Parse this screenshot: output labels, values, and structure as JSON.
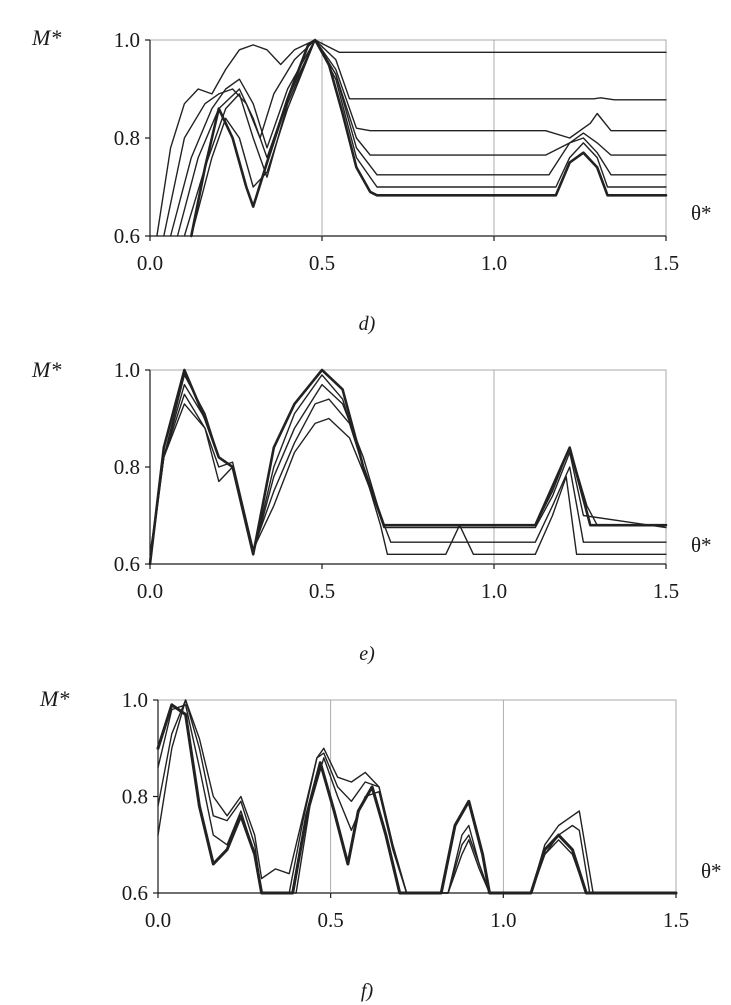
{
  "chart_data": [
    {
      "type": "line",
      "panel": "d",
      "caption": "d)",
      "ylabel": "M*",
      "xlabel": "θ*",
      "xlim": [
        0,
        1.5
      ],
      "ylim": [
        0.6,
        1.0
      ],
      "xticks": [
        "0.0",
        "0.5",
        "1.0",
        "1.5"
      ],
      "yticks": [
        "0.6",
        "0.8",
        "1.0"
      ],
      "vgrid": [
        0.5,
        1.0
      ],
      "series": [
        {
          "x": [
            0.02,
            0.06,
            0.1,
            0.14,
            0.18,
            0.22,
            0.26,
            0.3,
            0.34,
            0.38,
            0.42,
            0.48,
            0.55,
            0.7,
            1.0,
            1.5
          ],
          "y": [
            0.6,
            0.78,
            0.87,
            0.9,
            0.89,
            0.94,
            0.98,
            0.99,
            0.98,
            0.95,
            0.98,
            1.0,
            0.975,
            0.975,
            0.975,
            0.975
          ],
          "width": 1.4
        },
        {
          "x": [
            0.04,
            0.1,
            0.16,
            0.2,
            0.24,
            0.28,
            0.32,
            0.36,
            0.42,
            0.48,
            0.54,
            0.58,
            0.7,
            1.25,
            1.29,
            1.31,
            1.35,
            1.5
          ],
          "y": [
            0.6,
            0.8,
            0.87,
            0.89,
            0.9,
            0.87,
            0.8,
            0.89,
            0.96,
            1.0,
            0.96,
            0.88,
            0.88,
            0.88,
            0.88,
            0.882,
            0.878,
            0.878
          ],
          "width": 1.4
        },
        {
          "x": [
            0.06,
            0.12,
            0.18,
            0.22,
            0.26,
            0.3,
            0.34,
            0.4,
            0.48,
            0.54,
            0.6,
            0.64,
            1.15,
            1.22,
            1.28,
            1.3,
            1.34,
            1.5
          ],
          "y": [
            0.6,
            0.76,
            0.86,
            0.9,
            0.92,
            0.87,
            0.78,
            0.9,
            1.0,
            0.94,
            0.82,
            0.815,
            0.815,
            0.8,
            0.83,
            0.85,
            0.815,
            0.815
          ],
          "width": 1.4
        },
        {
          "x": [
            0.08,
            0.14,
            0.2,
            0.26,
            0.3,
            0.34,
            0.4,
            0.48,
            0.54,
            0.6,
            0.64,
            1.15,
            1.22,
            1.26,
            1.3,
            1.34,
            1.5
          ],
          "y": [
            0.6,
            0.76,
            0.86,
            0.9,
            0.84,
            0.76,
            0.88,
            1.0,
            0.93,
            0.8,
            0.765,
            0.765,
            0.79,
            0.81,
            0.79,
            0.765,
            0.765
          ],
          "width": 1.4
        },
        {
          "x": [
            0.1,
            0.16,
            0.22,
            0.26,
            0.3,
            0.34,
            0.4,
            0.48,
            0.54,
            0.6,
            0.66,
            1.16,
            1.22,
            1.26,
            1.3,
            1.34,
            1.5
          ],
          "y": [
            0.6,
            0.74,
            0.86,
            0.89,
            0.8,
            0.72,
            0.87,
            1.0,
            0.93,
            0.78,
            0.725,
            0.725,
            0.79,
            0.8,
            0.77,
            0.725,
            0.725
          ],
          "width": 1.4
        },
        {
          "x": [
            0.12,
            0.18,
            0.22,
            0.26,
            0.3,
            0.34,
            0.4,
            0.48,
            0.54,
            0.6,
            0.66,
            1.18,
            1.22,
            1.26,
            1.3,
            1.33,
            1.5
          ],
          "y": [
            0.6,
            0.76,
            0.84,
            0.8,
            0.7,
            0.73,
            0.86,
            1.0,
            0.92,
            0.76,
            0.7,
            0.7,
            0.76,
            0.79,
            0.76,
            0.7,
            0.7
          ],
          "width": 1.4
        },
        {
          "x": [
            0.12,
            0.16,
            0.2,
            0.24,
            0.28,
            0.3,
            0.34,
            0.4,
            0.46,
            0.48,
            0.52,
            0.56,
            0.6,
            0.64,
            0.66,
            1.18,
            1.22,
            1.26,
            1.3,
            1.33,
            1.5
          ],
          "y": [
            0.6,
            0.74,
            0.86,
            0.8,
            0.7,
            0.66,
            0.75,
            0.88,
            0.99,
            1.0,
            0.95,
            0.85,
            0.74,
            0.69,
            0.683,
            0.683,
            0.75,
            0.77,
            0.74,
            0.683,
            0.683
          ],
          "width": 2.6
        }
      ]
    },
    {
      "type": "line",
      "panel": "e",
      "caption": "e)",
      "ylabel": "M*",
      "xlabel": "θ*",
      "xlim": [
        0,
        1.5
      ],
      "ylim": [
        0.6,
        1.0
      ],
      "xticks": [
        "0.0",
        "0.5",
        "1.0",
        "1.5"
      ],
      "yticks": [
        "0.6",
        "0.8",
        "1.0"
      ],
      "vgrid": [
        1.0
      ],
      "series": [
        {
          "x": [
            0.0,
            0.04,
            0.1,
            0.16,
            0.2,
            0.24,
            0.3,
            0.36,
            0.42,
            0.48,
            0.52,
            0.58,
            0.62,
            0.68,
            1.12,
            1.17,
            1.22,
            1.27,
            1.3,
            1.5
          ],
          "y": [
            0.62,
            0.82,
            0.93,
            0.88,
            0.77,
            0.8,
            0.63,
            0.72,
            0.83,
            0.89,
            0.9,
            0.86,
            0.79,
            0.68,
            0.68,
            0.75,
            0.84,
            0.72,
            0.68,
            0.68
          ],
          "width": 1.4
        },
        {
          "x": [
            0.0,
            0.04,
            0.1,
            0.16,
            0.2,
            0.24,
            0.3,
            0.36,
            0.42,
            0.48,
            0.52,
            0.58,
            0.62,
            0.68,
            1.12,
            1.17,
            1.22,
            1.26,
            1.5
          ],
          "y": [
            0.61,
            0.82,
            0.95,
            0.88,
            0.8,
            0.81,
            0.63,
            0.75,
            0.85,
            0.93,
            0.94,
            0.89,
            0.8,
            0.675,
            0.675,
            0.74,
            0.83,
            0.7,
            0.675
          ],
          "width": 1.4
        },
        {
          "x": [
            0.0,
            0.04,
            0.1,
            0.16,
            0.2,
            0.24,
            0.3,
            0.36,
            0.42,
            0.5,
            0.56,
            0.62,
            0.67,
            0.7,
            1.12,
            1.17,
            1.22,
            1.26,
            1.5
          ],
          "y": [
            0.61,
            0.82,
            0.97,
            0.9,
            0.82,
            0.8,
            0.62,
            0.78,
            0.88,
            0.97,
            0.93,
            0.82,
            0.7,
            0.645,
            0.645,
            0.72,
            0.8,
            0.645,
            0.645
          ],
          "width": 1.4
        },
        {
          "x": [
            0.0,
            0.04,
            0.1,
            0.16,
            0.2,
            0.24,
            0.3,
            0.36,
            0.42,
            0.5,
            0.56,
            0.62,
            0.67,
            0.69,
            0.86,
            0.9,
            0.94,
            1.12,
            1.17,
            1.21,
            1.24,
            1.5
          ],
          "y": [
            0.6,
            0.82,
            0.99,
            0.91,
            0.82,
            0.8,
            0.62,
            0.8,
            0.91,
            0.99,
            0.94,
            0.8,
            0.68,
            0.62,
            0.62,
            0.68,
            0.62,
            0.62,
            0.7,
            0.78,
            0.62,
            0.62
          ],
          "width": 1.4
        },
        {
          "x": [
            0.0,
            0.04,
            0.1,
            0.16,
            0.2,
            0.24,
            0.3,
            0.36,
            0.42,
            0.5,
            0.56,
            0.62,
            0.68,
            1.12,
            1.17,
            1.22,
            1.28,
            1.5
          ],
          "y": [
            0.6,
            0.84,
            1.0,
            0.9,
            0.82,
            0.8,
            0.62,
            0.84,
            0.93,
            1.0,
            0.96,
            0.8,
            0.68,
            0.68,
            0.76,
            0.84,
            0.68,
            0.68
          ],
          "width": 2.6
        }
      ]
    },
    {
      "type": "line",
      "panel": "f",
      "caption": "f)",
      "ylabel": "M*",
      "xlabel": "θ*",
      "xlim": [
        0,
        1.5
      ],
      "ylim": [
        0.6,
        1.0
      ],
      "xticks": [
        "0.0",
        "0.5",
        "1.0",
        "1.5"
      ],
      "yticks": [
        "0.6",
        "0.8",
        "1.0"
      ],
      "vgrid": [
        0.5,
        1.0
      ],
      "series": [
        {
          "x": [
            0.0,
            0.04,
            0.08,
            0.12,
            0.16,
            0.2,
            0.24,
            0.28,
            0.3,
            0.34,
            0.38,
            0.42,
            0.46,
            0.48,
            0.52,
            0.56,
            0.6,
            0.64,
            0.68,
            0.72,
            0.84,
            0.88,
            0.9,
            0.93,
            0.96,
            1.08,
            1.12,
            1.16,
            1.2,
            1.22,
            1.26,
            1.5
          ],
          "y": [
            0.72,
            0.9,
            1.0,
            0.92,
            0.8,
            0.76,
            0.8,
            0.72,
            0.63,
            0.65,
            0.64,
            0.76,
            0.88,
            0.9,
            0.84,
            0.83,
            0.85,
            0.82,
            0.7,
            0.6,
            0.6,
            0.72,
            0.74,
            0.66,
            0.6,
            0.6,
            0.7,
            0.74,
            0.76,
            0.77,
            0.6,
            0.6
          ],
          "width": 1.4
        },
        {
          "x": [
            0.0,
            0.04,
            0.08,
            0.12,
            0.16,
            0.2,
            0.24,
            0.28,
            0.3,
            0.34,
            0.38,
            0.42,
            0.46,
            0.48,
            0.52,
            0.56,
            0.6,
            0.64,
            0.68,
            0.72,
            0.84,
            0.88,
            0.9,
            0.93,
            0.96,
            1.08,
            1.12,
            1.16,
            1.2,
            1.22,
            1.25,
            1.5
          ],
          "y": [
            0.78,
            0.93,
            1.0,
            0.9,
            0.76,
            0.75,
            0.79,
            0.7,
            0.6,
            0.6,
            0.6,
            0.75,
            0.88,
            0.89,
            0.82,
            0.79,
            0.83,
            0.82,
            0.7,
            0.6,
            0.6,
            0.68,
            0.71,
            0.65,
            0.6,
            0.6,
            0.68,
            0.72,
            0.74,
            0.73,
            0.6,
            0.6
          ],
          "width": 1.4
        },
        {
          "x": [
            0.0,
            0.04,
            0.08,
            0.12,
            0.16,
            0.2,
            0.24,
            0.28,
            0.3,
            0.4,
            0.44,
            0.48,
            0.52,
            0.56,
            0.6,
            0.64,
            0.68,
            0.72,
            0.84,
            0.88,
            0.9,
            0.93,
            0.96,
            1.08,
            1.12,
            1.16,
            1.2,
            1.24,
            1.5
          ],
          "y": [
            0.86,
            0.98,
            0.99,
            0.86,
            0.72,
            0.7,
            0.77,
            0.68,
            0.6,
            0.6,
            0.78,
            0.88,
            0.8,
            0.73,
            0.8,
            0.81,
            0.69,
            0.6,
            0.6,
            0.7,
            0.72,
            0.66,
            0.6,
            0.6,
            0.68,
            0.71,
            0.68,
            0.6,
            0.6
          ],
          "width": 1.4
        },
        {
          "x": [
            0.0,
            0.04,
            0.08,
            0.12,
            0.16,
            0.2,
            0.24,
            0.28,
            0.3,
            0.39,
            0.43,
            0.47,
            0.51,
            0.55,
            0.58,
            0.62,
            0.66,
            0.7,
            0.82,
            0.86,
            0.9,
            0.94,
            0.96,
            1.08,
            1.12,
            1.16,
            1.2,
            1.24,
            1.5
          ],
          "y": [
            0.9,
            0.99,
            0.97,
            0.78,
            0.66,
            0.69,
            0.76,
            0.68,
            0.6,
            0.6,
            0.76,
            0.87,
            0.77,
            0.66,
            0.77,
            0.82,
            0.72,
            0.6,
            0.6,
            0.74,
            0.79,
            0.68,
            0.6,
            0.6,
            0.69,
            0.72,
            0.69,
            0.6,
            0.6
          ],
          "width": 3.0
        }
      ]
    }
  ]
}
